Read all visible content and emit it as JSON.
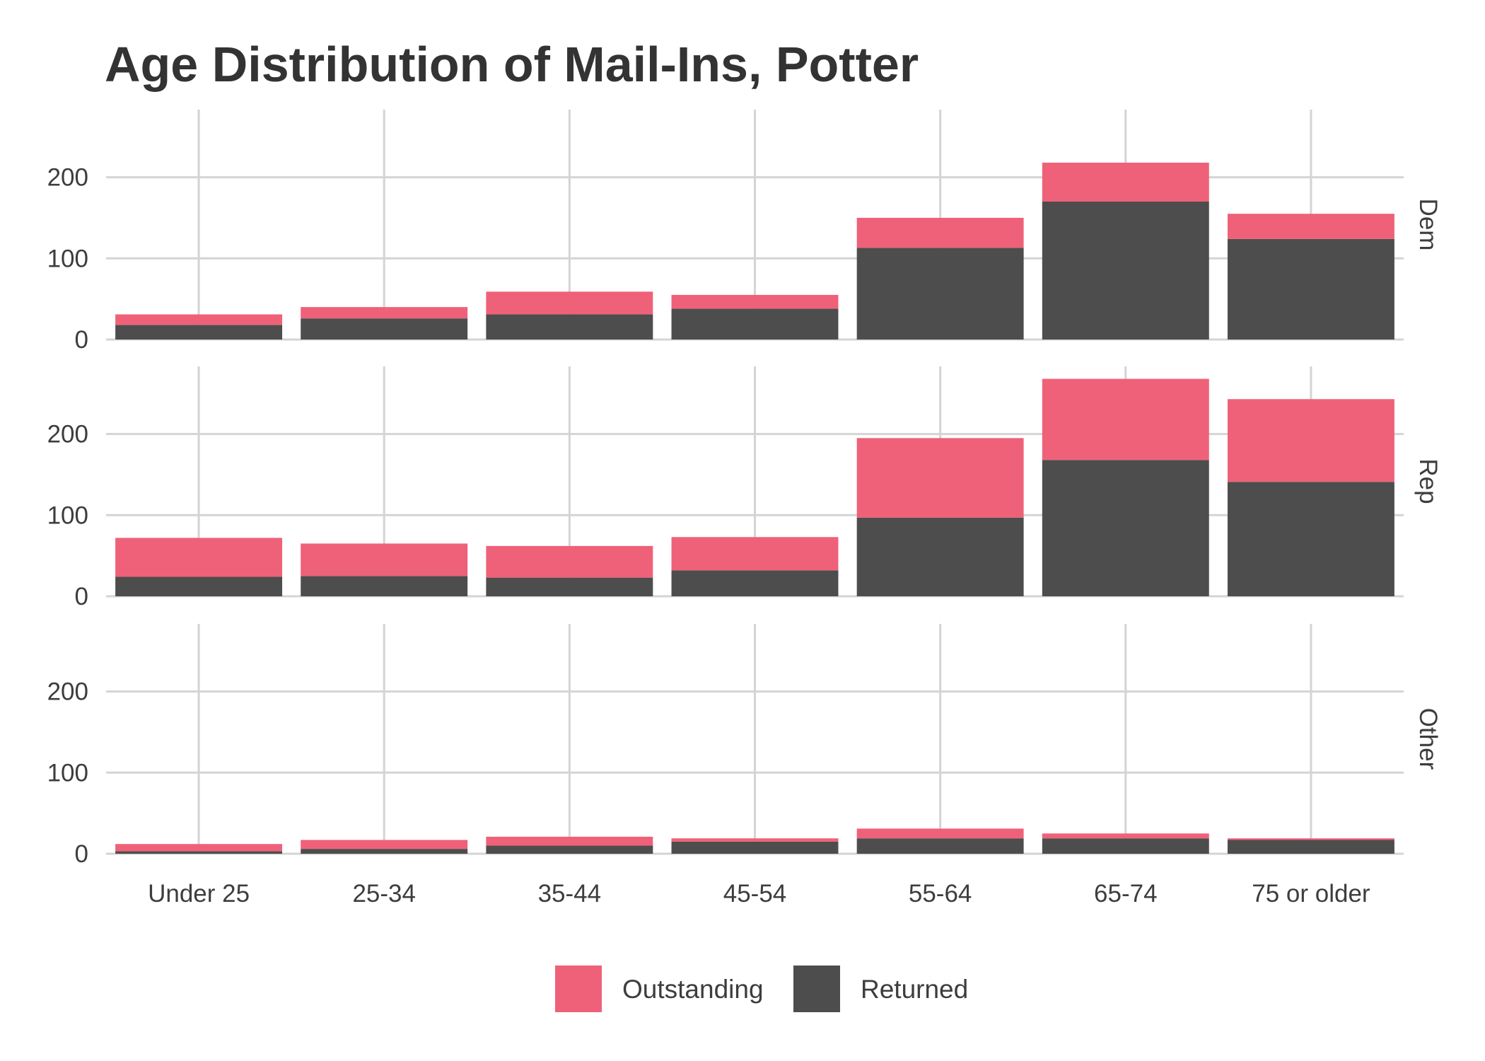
{
  "chart_data": {
    "type": "bar",
    "stacked": true,
    "faceted": true,
    "title": "Age Distribution of Mail-Ins, Potter",
    "xlabel": "",
    "ylabel": "",
    "ylim": [
      0,
      280
    ],
    "yticks": [
      0,
      100,
      200
    ],
    "grid": true,
    "legend_position": "bottom",
    "categories": [
      "Under 25",
      "25-34",
      "35-44",
      "45-54",
      "55-64",
      "65-74",
      "75 or older"
    ],
    "legend": [
      {
        "name": "Outstanding",
        "color": "#ef6179"
      },
      {
        "name": "Returned",
        "color": "#4d4d4d"
      }
    ],
    "facets": [
      {
        "name": "Dem",
        "series": [
          {
            "name": "Returned",
            "values": [
              18,
              26,
              31,
              38,
              113,
              170,
              124
            ]
          },
          {
            "name": "Outstanding",
            "values": [
              13,
              14,
              28,
              17,
              37,
              48,
              31
            ]
          }
        ]
      },
      {
        "name": "Rep",
        "series": [
          {
            "name": "Returned",
            "values": [
              24,
              25,
              23,
              32,
              97,
              168,
              141
            ]
          },
          {
            "name": "Outstanding",
            "values": [
              48,
              40,
              39,
              41,
              98,
              100,
              102
            ]
          }
        ]
      },
      {
        "name": "Other",
        "series": [
          {
            "name": "Returned",
            "values": [
              3,
              6,
              10,
              15,
              19,
              19,
              17
            ]
          },
          {
            "name": "Outstanding",
            "values": [
              9,
              11,
              11,
              4,
              12,
              6,
              2
            ]
          }
        ]
      }
    ]
  }
}
